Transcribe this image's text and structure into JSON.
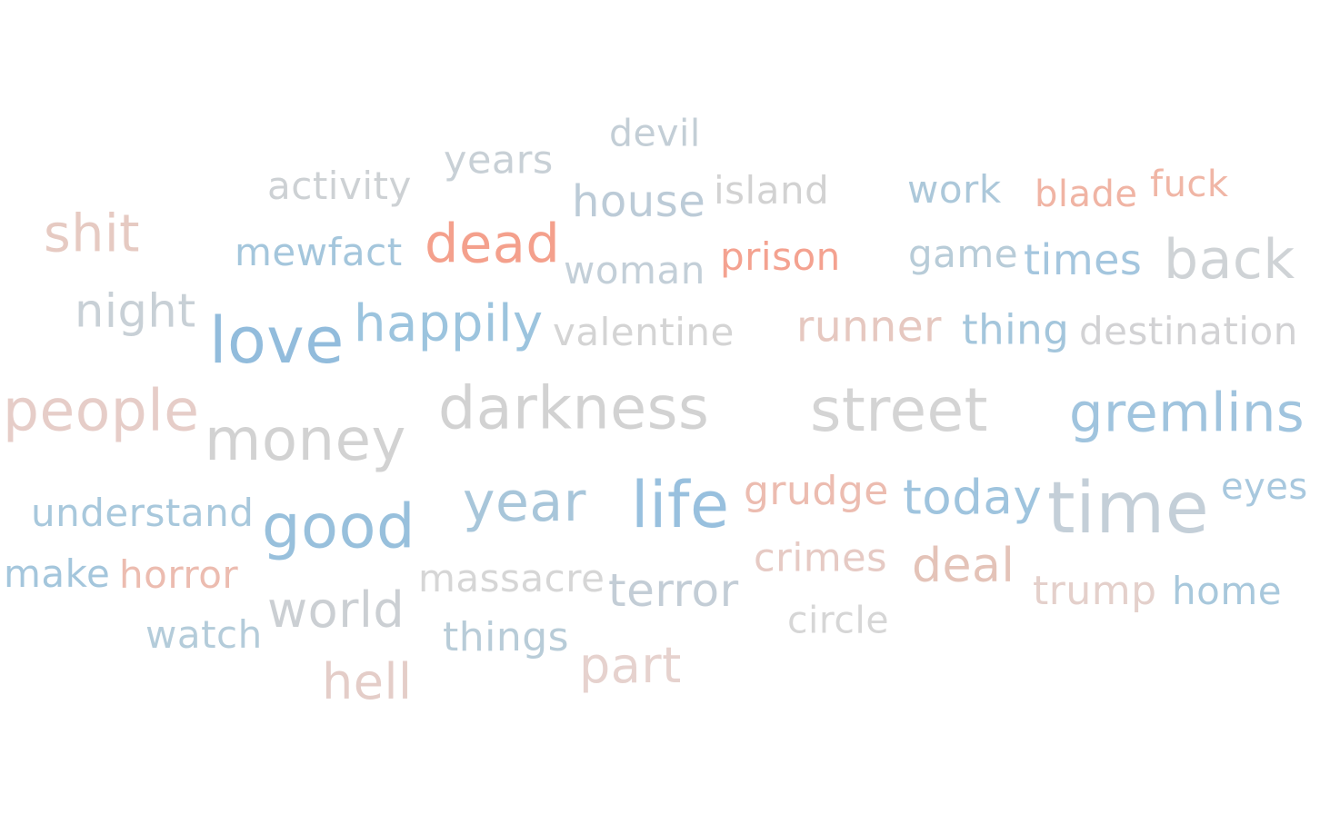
{
  "words": [
    {
      "text": "devil",
      "color": "#c3ced6"
    },
    {
      "text": "years",
      "color": "#c8d0d6"
    },
    {
      "text": "activity",
      "color": "#cdd1d4"
    },
    {
      "text": "house",
      "color": "#bccbd7"
    },
    {
      "text": "island",
      "color": "#d2d2d2"
    },
    {
      "text": "work",
      "color": "#acc8da"
    },
    {
      "text": "blade",
      "color": "#f0b4a4"
    },
    {
      "text": "fuck",
      "color": "#f0b6a6"
    },
    {
      "text": "shit",
      "color": "#e6cac2"
    },
    {
      "text": "mewfact",
      "color": "#a4c6dc"
    },
    {
      "text": "dead",
      "color": "#f4a08c"
    },
    {
      "text": "woman",
      "color": "#c3cfd8"
    },
    {
      "text": "prison",
      "color": "#f4a290"
    },
    {
      "text": "game",
      "color": "#b8ccd8"
    },
    {
      "text": "times",
      "color": "#a4c6de"
    },
    {
      "text": "back",
      "color": "#cfd3d6"
    },
    {
      "text": "night",
      "color": "#c8d0d6"
    },
    {
      "text": "love",
      "color": "#92bcdc"
    },
    {
      "text": "happily",
      "color": "#9cc4de"
    },
    {
      "text": "valentine",
      "color": "#d4d4d4"
    },
    {
      "text": "runner",
      "color": "#e6c8c0"
    },
    {
      "text": "thing",
      "color": "#a4c6dc"
    },
    {
      "text": "destination",
      "color": "#d2d2d4"
    },
    {
      "text": "people",
      "color": "#e6cdc8"
    },
    {
      "text": "money",
      "color": "#d2d2d2"
    },
    {
      "text": "darkness",
      "color": "#d2d2d2"
    },
    {
      "text": "street",
      "color": "#d4d4d4"
    },
    {
      "text": "gremlins",
      "color": "#a0c4de"
    },
    {
      "text": "understand",
      "color": "#a8c8dc"
    },
    {
      "text": "good",
      "color": "#98c0dc"
    },
    {
      "text": "year",
      "color": "#a8c6da"
    },
    {
      "text": "life",
      "color": "#98c0de"
    },
    {
      "text": "grudge",
      "color": "#ecbcb0"
    },
    {
      "text": "today",
      "color": "#9fc4de"
    },
    {
      "text": "time",
      "color": "#c4cfd8"
    },
    {
      "text": "eyes",
      "color": "#a8c8de"
    },
    {
      "text": "make",
      "color": "#a4c6dc"
    },
    {
      "text": "horror",
      "color": "#ecbcb0"
    },
    {
      "text": "massacre",
      "color": "#d6d6d6"
    },
    {
      "text": "terror",
      "color": "#c3cdd6"
    },
    {
      "text": "crimes",
      "color": "#e6cac4"
    },
    {
      "text": "deal",
      "color": "#e4c3b8"
    },
    {
      "text": "trump",
      "color": "#e4d0cb"
    },
    {
      "text": "home",
      "color": "#a8c8dc"
    },
    {
      "text": "world",
      "color": "#cbcfd3"
    },
    {
      "text": "circle",
      "color": "#d6d6d6"
    },
    {
      "text": "watch",
      "color": "#b4ccda"
    },
    {
      "text": "things",
      "color": "#b8ccd8"
    },
    {
      "text": "part",
      "color": "#e6d2ce"
    },
    {
      "text": "hell",
      "color": "#e4cdc8"
    }
  ]
}
